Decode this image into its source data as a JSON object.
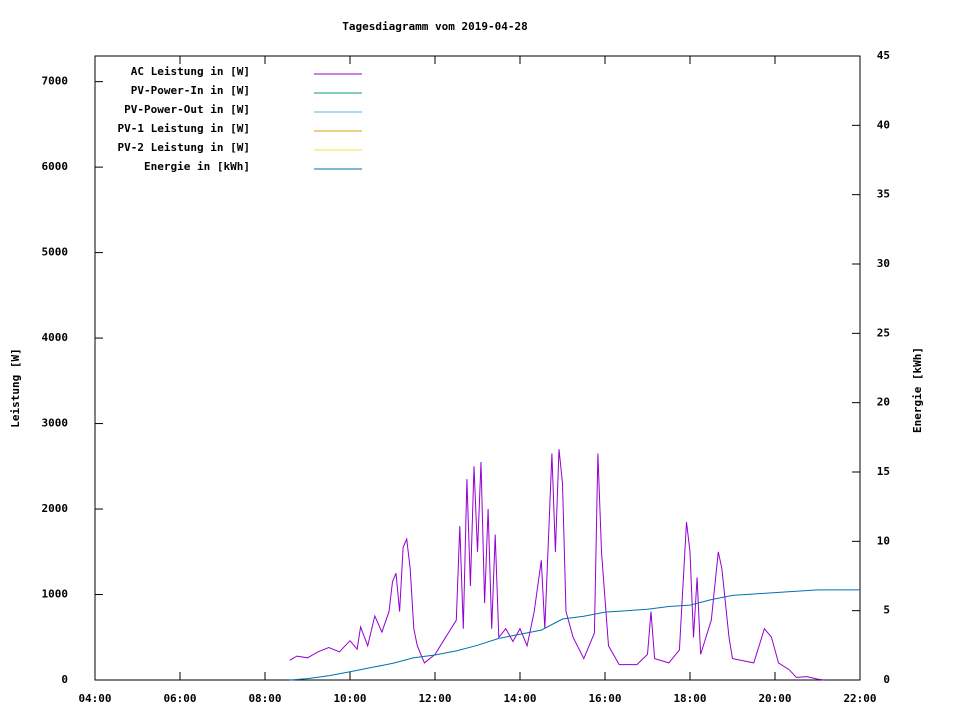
{
  "chart_data": {
    "type": "line",
    "title": "Tagesdiagramm vom 2019-04-28",
    "ylabel": "Leistung [W]",
    "y2label": "Energie [kWh]",
    "xlim": [
      "04:00",
      "22:00"
    ],
    "xticks": [
      "04:00",
      "06:00",
      "08:00",
      "10:00",
      "12:00",
      "14:00",
      "16:00",
      "18:00",
      "20:00",
      "22:00"
    ],
    "ylim": [
      0,
      7300
    ],
    "yticks": [
      0,
      1000,
      2000,
      3000,
      4000,
      5000,
      6000,
      7000
    ],
    "y2lim": [
      0,
      45
    ],
    "y2ticks": [
      0,
      5,
      10,
      15,
      20,
      25,
      30,
      35,
      40,
      45
    ],
    "legend": "upper left",
    "series": [
      {
        "name": "AC Leistung in [W]",
        "color": "#9400d3",
        "x": [
          "08:35",
          "08:45",
          "09:00",
          "09:15",
          "09:30",
          "09:45",
          "10:00",
          "10:10",
          "10:15",
          "10:25",
          "10:35",
          "10:45",
          "10:55",
          "11:00",
          "11:05",
          "11:10",
          "11:15",
          "11:20",
          "11:25",
          "11:30",
          "11:35",
          "11:45",
          "12:00",
          "12:15",
          "12:30",
          "12:35",
          "12:40",
          "12:45",
          "12:50",
          "12:55",
          "13:00",
          "13:05",
          "13:10",
          "13:15",
          "13:20",
          "13:25",
          "13:30",
          "13:40",
          "13:50",
          "14:00",
          "14:10",
          "14:20",
          "14:30",
          "14:35",
          "14:40",
          "14:45",
          "14:50",
          "14:55",
          "15:00",
          "15:05",
          "15:15",
          "15:30",
          "15:45",
          "15:50",
          "15:55",
          "16:05",
          "16:20",
          "16:45",
          "17:00",
          "17:05",
          "17:10",
          "17:30",
          "17:45",
          "17:55",
          "18:00",
          "18:05",
          "18:10",
          "18:15",
          "18:30",
          "18:40",
          "18:45",
          "18:55",
          "19:00",
          "19:30",
          "19:45",
          "19:55",
          "20:05",
          "20:20",
          "20:30",
          "20:45",
          "21:00",
          "21:10"
        ],
        "values": [
          230,
          280,
          260,
          330,
          380,
          330,
          460,
          360,
          620,
          400,
          750,
          560,
          800,
          1150,
          1250,
          800,
          1550,
          1650,
          1300,
          600,
          400,
          200,
          300,
          500,
          700,
          1800,
          600,
          2350,
          1100,
          2500,
          1500,
          2550,
          900,
          2000,
          600,
          1700,
          500,
          600,
          450,
          600,
          400,
          800,
          1400,
          600,
          1600,
          2650,
          1500,
          2700,
          2300,
          800,
          500,
          250,
          550,
          2650,
          1500,
          400,
          180,
          180,
          300,
          800,
          250,
          200,
          350,
          1850,
          1500,
          500,
          1200,
          300,
          700,
          1500,
          1300,
          500,
          250,
          200,
          600,
          500,
          200,
          120,
          30,
          40,
          10,
          0
        ]
      },
      {
        "name": "PV-Power-In in [W]",
        "color": "#009e73",
        "x": [],
        "values": []
      },
      {
        "name": "PV-Power-Out in [W]",
        "color": "#56b4e9",
        "x": [],
        "values": []
      },
      {
        "name": "PV-1 Leistung in [W]",
        "color": "#e69f00",
        "x": [],
        "values": []
      },
      {
        "name": "PV-2 Leistung in [W]",
        "color": "#f0e442",
        "x": [],
        "values": []
      },
      {
        "name": "Energie in [kWh]",
        "color": "#0072b2",
        "axis": "y2",
        "x": [
          "08:35",
          "09:00",
          "09:30",
          "10:00",
          "10:30",
          "11:00",
          "11:30",
          "12:00",
          "12:30",
          "13:00",
          "13:30",
          "14:00",
          "14:30",
          "15:00",
          "15:30",
          "16:00",
          "16:30",
          "17:00",
          "17:30",
          "18:00",
          "18:30",
          "19:00",
          "19:30",
          "20:00",
          "20:30",
          "21:00",
          "21:30",
          "22:00"
        ],
        "values": [
          0,
          0.1,
          0.3,
          0.6,
          0.9,
          1.2,
          1.6,
          1.8,
          2.1,
          2.5,
          3.0,
          3.3,
          3.6,
          4.4,
          4.6,
          4.9,
          5.0,
          5.1,
          5.3,
          5.4,
          5.8,
          6.1,
          6.2,
          6.3,
          6.4,
          6.5,
          6.5,
          6.5
        ]
      }
    ]
  }
}
